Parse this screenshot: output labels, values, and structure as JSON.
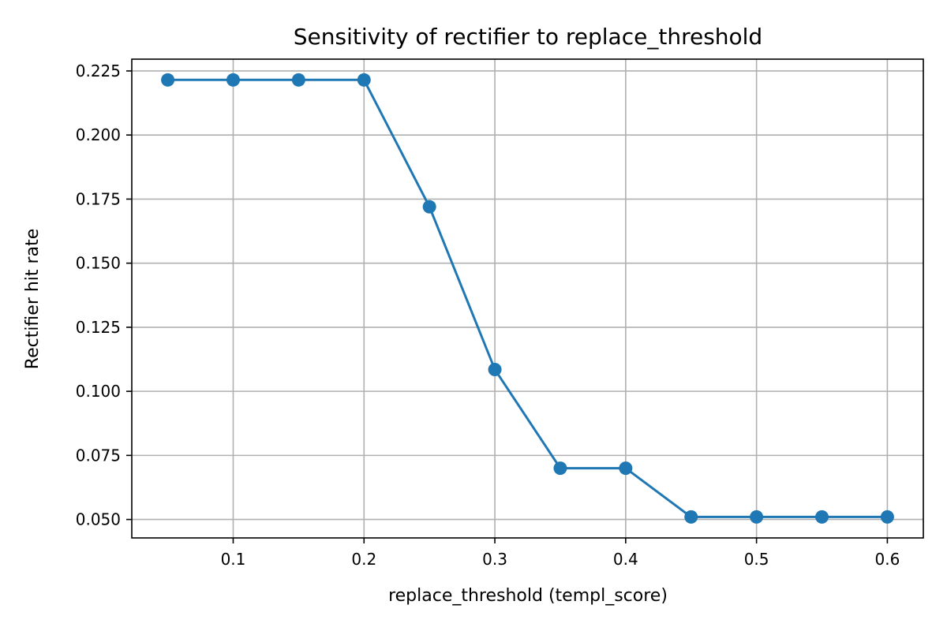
{
  "chart_data": {
    "type": "line",
    "title": "Sensitivity of rectifier to replace_threshold",
    "xlabel": "replace_threshold (templ_score)",
    "ylabel": "Rectifier hit rate",
    "xlim": [
      0.0225,
      0.6275
    ],
    "ylim": [
      0.0428,
      0.2296
    ],
    "x_ticks": [
      0.1,
      0.2,
      0.3,
      0.4,
      0.5,
      0.6
    ],
    "x_tick_labels": [
      "0.1",
      "0.2",
      "0.3",
      "0.4",
      "0.5",
      "0.6"
    ],
    "y_ticks": [
      0.05,
      0.075,
      0.1,
      0.125,
      0.15,
      0.175,
      0.2,
      0.225
    ],
    "y_tick_labels": [
      "0.050",
      "0.075",
      "0.100",
      "0.125",
      "0.150",
      "0.175",
      "0.200",
      "0.225"
    ],
    "grid": true,
    "series": [
      {
        "color": "#1f77b4",
        "marker": "circle",
        "x": [
          0.05,
          0.1,
          0.15,
          0.2,
          0.25,
          0.3,
          0.35,
          0.4,
          0.45,
          0.5,
          0.55,
          0.6
        ],
        "y": [
          0.2215,
          0.2215,
          0.2215,
          0.2215,
          0.172,
          0.1085,
          0.07,
          0.07,
          0.051,
          0.051,
          0.051,
          0.051
        ]
      }
    ]
  }
}
